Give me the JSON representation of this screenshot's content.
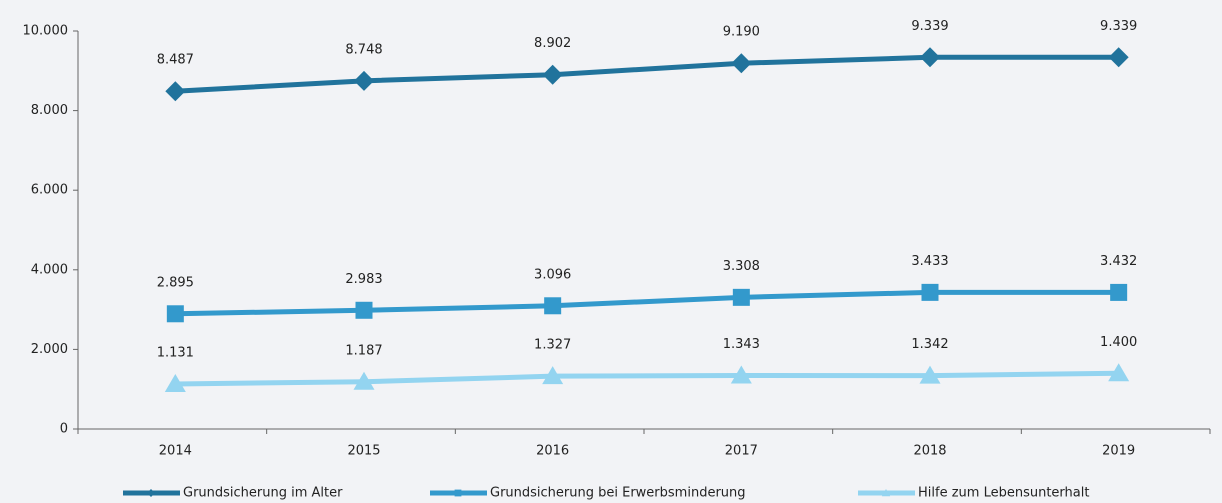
{
  "chart_data": {
    "type": "line",
    "categories": [
      "2014",
      "2015",
      "2016",
      "2017",
      "2018",
      "2019"
    ],
    "series": [
      {
        "name": "Grundsicherung im Alter",
        "color": "#21739c",
        "marker": "diamond",
        "values": [
          8487,
          8748,
          8902,
          9190,
          9339,
          9339
        ],
        "value_labels": [
          "8.487",
          "8.748",
          "8.902",
          "9.190",
          "9.339",
          "9.339"
        ]
      },
      {
        "name": "Grundsicherung bei Erwerbsminderung",
        "color": "#3399cc",
        "marker": "square",
        "values": [
          2895,
          2983,
          3096,
          3308,
          3433,
          3432
        ],
        "value_labels": [
          "2.895",
          "2.983",
          "3.096",
          "3.308",
          "3.433",
          "3.432"
        ]
      },
      {
        "name": "Hilfe zum Lebensunterhalt",
        "color": "#93d4f0",
        "marker": "triangle",
        "values": [
          1131,
          1187,
          1327,
          1343,
          1342,
          1400
        ],
        "value_labels": [
          "1.131",
          "1.187",
          "1.327",
          "1.343",
          "1.342",
          "1.400"
        ]
      }
    ],
    "ylim": [
      0,
      10000
    ],
    "yticks": [
      0,
      {
        "value": 2000,
        "label": "2.000"
      },
      {
        "value": 4000,
        "label": "4.000"
      },
      {
        "value": 6000,
        "label": "6.000"
      },
      {
        "value": 8000,
        "label": "8.000"
      },
      {
        "value": 10000,
        "label": "10.000"
      }
    ],
    "grid": false,
    "legend": "bottom"
  }
}
